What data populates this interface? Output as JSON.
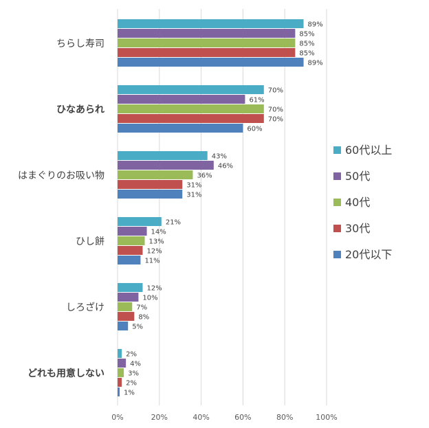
{
  "chart_data": {
    "type": "bar",
    "orientation": "horizontal",
    "categories": [
      "ちらし寿司",
      "ひなあられ",
      "はまぐりのお吸い物",
      "ひし餅",
      "しろざけ",
      "どれも用意しない"
    ],
    "xlim": [
      0,
      100
    ],
    "ticks": [
      0,
      20,
      40,
      60,
      80,
      100
    ],
    "tick_labels": [
      "0%",
      "20%",
      "40%",
      "60%",
      "80%",
      "100%"
    ],
    "value_suffix": "%",
    "grid": true,
    "legend_position": "right",
    "series": [
      {
        "name": "60代以上",
        "color": "#4BACC6",
        "values": [
          89,
          70,
          43,
          21,
          12,
          2
        ]
      },
      {
        "name": "50代",
        "color": "#8064A2",
        "values": [
          85,
          61,
          46,
          14,
          10,
          4
        ]
      },
      {
        "name": "40代",
        "color": "#9BBB59",
        "values": [
          85,
          70,
          36,
          13,
          7,
          3
        ]
      },
      {
        "name": "30代",
        "color": "#C0504D",
        "values": [
          85,
          70,
          31,
          12,
          8,
          2
        ]
      },
      {
        "name": "20代以下",
        "color": "#4F81BD",
        "values": [
          89,
          60,
          31,
          11,
          5,
          1
        ]
      }
    ],
    "bold_category_indices": [
      1,
      5
    ]
  }
}
